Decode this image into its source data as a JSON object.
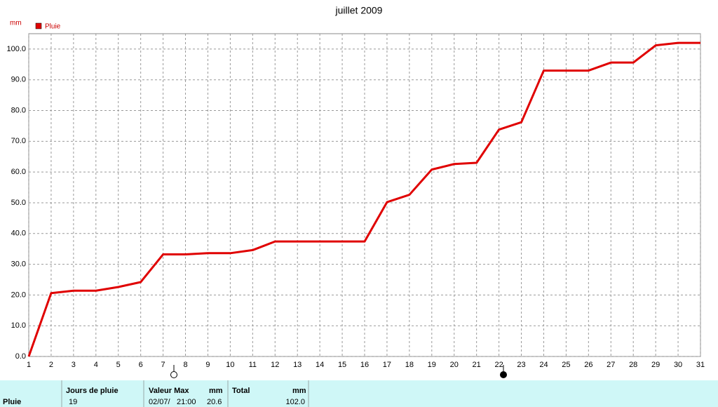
{
  "chart_data": {
    "type": "line",
    "title": "juillet 2009",
    "y_unit": "mm",
    "x": [
      1,
      2,
      3,
      4,
      5,
      6,
      7,
      8,
      9,
      10,
      11,
      12,
      13,
      14,
      15,
      16,
      17,
      18,
      19,
      20,
      21,
      22,
      23,
      24,
      25,
      26,
      27,
      28,
      29,
      30,
      31
    ],
    "series": [
      {
        "name": "Pluie",
        "color": "#e00000",
        "values": [
          0,
          20.6,
          21.4,
          21.4,
          22.6,
          24.2,
          33.2,
          33.2,
          33.6,
          33.6,
          34.6,
          37.4,
          37.4,
          37.4,
          37.4,
          37.4,
          50.2,
          52.6,
          60.8,
          62.6,
          63.0,
          73.8,
          76.2,
          93.0,
          93.0,
          93.0,
          95.6,
          95.6,
          101.2,
          102.0,
          102.0
        ]
      }
    ],
    "xlim": [
      1,
      31
    ],
    "xticks": [
      1,
      2,
      3,
      4,
      5,
      6,
      7,
      8,
      9,
      10,
      11,
      12,
      13,
      14,
      15,
      16,
      17,
      18,
      19,
      20,
      21,
      22,
      23,
      24,
      25,
      26,
      27,
      28,
      29,
      30,
      31
    ],
    "ylim": [
      0,
      105
    ],
    "yticks": [
      {
        "value": 0,
        "label": "0.0"
      },
      {
        "value": 10,
        "label": "10.0"
      },
      {
        "value": 20,
        "label": "20.0"
      },
      {
        "value": 30,
        "label": "30.0"
      },
      {
        "value": 40,
        "label": "40.0"
      },
      {
        "value": 50,
        "label": "50.0"
      },
      {
        "value": 60,
        "label": "60.0"
      },
      {
        "value": 70,
        "label": "70.0"
      },
      {
        "value": 80,
        "label": "80.0"
      },
      {
        "value": 90,
        "label": "90.0"
      },
      {
        "value": 100,
        "label": "100.0"
      }
    ],
    "grid": true
  },
  "table": {
    "row_label": "Pluie",
    "columns": [
      {
        "header": "Jours de pluie",
        "value": "19"
      },
      {
        "header": "Valeur Max",
        "unit": "mm",
        "date": "02/07/",
        "time": "21:00",
        "value": "20.6"
      },
      {
        "header": "Total",
        "unit": "mm",
        "value": "102.0"
      }
    ]
  }
}
